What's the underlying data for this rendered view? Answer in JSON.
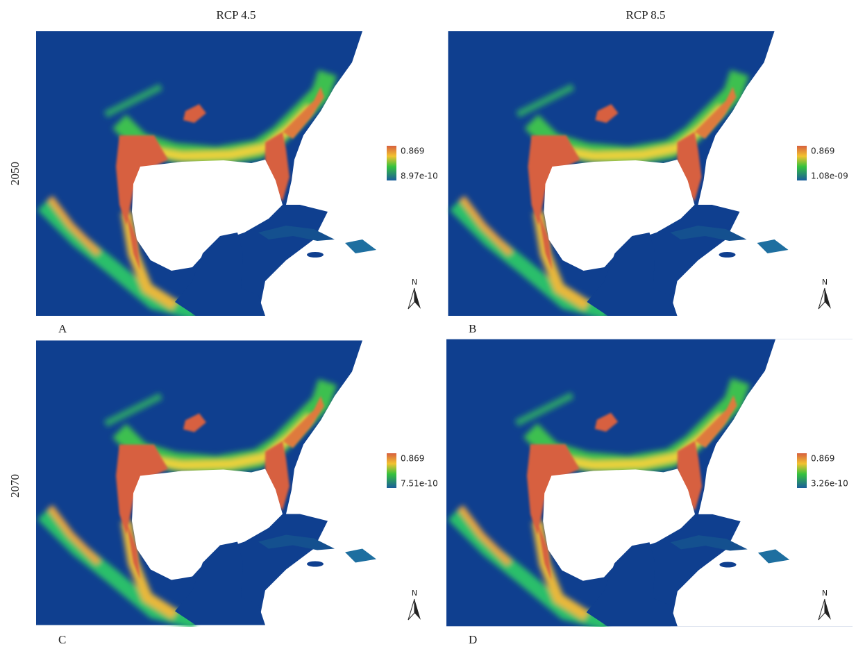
{
  "column_headers": [
    "RCP 4.5",
    "RCP 8.5"
  ],
  "row_headers": [
    "2050",
    "2070"
  ],
  "panels": [
    {
      "label": "A",
      "legend_max": "0.869",
      "legend_min": "8.97e-10",
      "north": "N"
    },
    {
      "label": "B",
      "legend_max": "0.869",
      "legend_min": "1.08e-09",
      "north": "N"
    },
    {
      "label": "C",
      "legend_max": "0.869",
      "legend_min": "7.51e-10",
      "north": "N"
    },
    {
      "label": "D",
      "legend_max": "0.869",
      "legend_min": "3.26e-10",
      "north": "N"
    }
  ]
}
